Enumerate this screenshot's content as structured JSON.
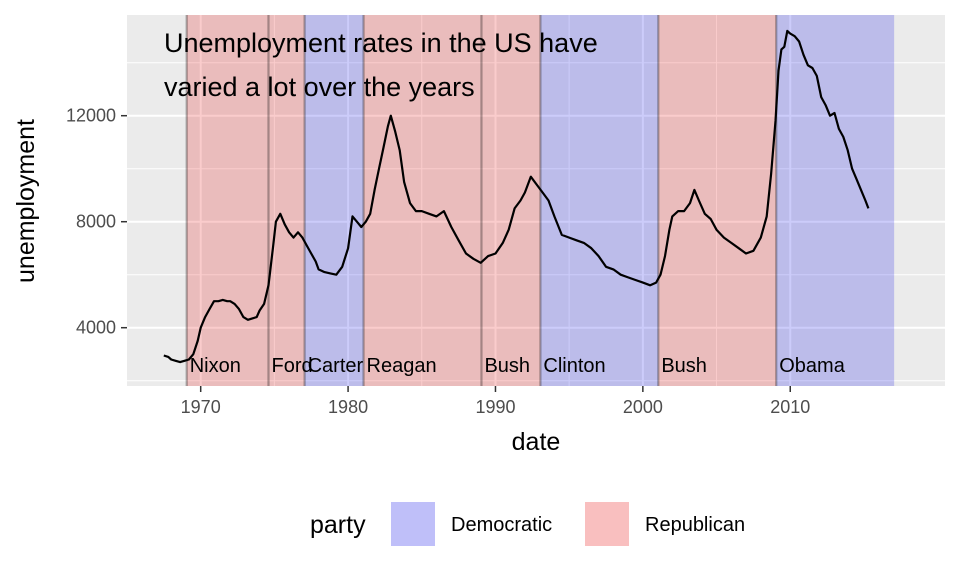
{
  "chart_data": {
    "type": "line",
    "xlabel": "date",
    "ylabel": "unemployment",
    "xlim": [
      1965.0,
      2020.5
    ],
    "ylim": [
      1800,
      15800
    ],
    "x_ticks": [
      1970,
      1980,
      1990,
      2000,
      2010
    ],
    "y_ticks": [
      4000,
      8000,
      12000
    ],
    "grid": true,
    "annotation": [
      "Unemployment rates in the US have",
      "varied a lot over the years"
    ],
    "colors": {
      "Democratic": "#0000e6",
      "Republican": "#e60000",
      "panel": "#ebebeb",
      "grid": "#ffffff",
      "line": "#000000"
    },
    "presidents": [
      {
        "name": "Nixon",
        "start": 1969.05,
        "end": 1974.6,
        "party": "Republican"
      },
      {
        "name": "Ford",
        "start": 1974.6,
        "end": 1977.05,
        "party": "Republican"
      },
      {
        "name": "Carter",
        "start": 1977.05,
        "end": 1981.05,
        "party": "Democratic"
      },
      {
        "name": "Reagan",
        "start": 1981.05,
        "end": 1989.05,
        "party": "Republican"
      },
      {
        "name": "Bush",
        "start": 1989.05,
        "end": 1993.05,
        "party": "Republican"
      },
      {
        "name": "Clinton",
        "start": 1993.05,
        "end": 2001.05,
        "party": "Democratic"
      },
      {
        "name": "Bush",
        "start": 2001.05,
        "end": 2009.05,
        "party": "Republican"
      },
      {
        "name": "Obama",
        "start": 2009.05,
        "end": 2017.05,
        "party": "Democratic"
      }
    ],
    "legend": {
      "title": "party",
      "position": "bottom",
      "items": [
        {
          "label": "Democratic",
          "color": "#0000e6"
        },
        {
          "label": "Republican",
          "color": "#e60000"
        }
      ]
    },
    "series": [
      {
        "x": [
          1967.5,
          1967.8,
          1968.0,
          1968.3,
          1968.6,
          1968.9,
          1969.2,
          1969.5,
          1969.8,
          1970.0,
          1970.3,
          1970.6,
          1970.9,
          1971.2,
          1971.5,
          1971.8,
          1972.0,
          1972.3,
          1972.6,
          1972.9,
          1973.2,
          1973.5,
          1973.8,
          1974.0,
          1974.3,
          1974.6,
          1974.9,
          1975.1,
          1975.4,
          1975.7,
          1976.0,
          1976.3,
          1976.6,
          1976.9,
          1977.2,
          1977.5,
          1977.8,
          1978.0,
          1978.4,
          1978.8,
          1979.2,
          1979.6,
          1980.0,
          1980.3,
          1980.6,
          1980.9,
          1981.2,
          1981.5,
          1981.8,
          1982.1,
          1982.4,
          1982.7,
          1982.9,
          1983.2,
          1983.5,
          1983.8,
          1984.2,
          1984.6,
          1985.0,
          1985.5,
          1986.0,
          1986.5,
          1987.0,
          1987.5,
          1988.0,
          1988.5,
          1989.0,
          1989.5,
          1990.0,
          1990.5,
          1990.9,
          1991.3,
          1991.7,
          1992.0,
          1992.4,
          1992.8,
          1993.2,
          1993.6,
          1994.0,
          1994.5,
          1995.0,
          1995.5,
          1996.0,
          1996.5,
          1997.0,
          1997.5,
          1998.0,
          1998.5,
          1999.0,
          1999.5,
          2000.0,
          2000.5,
          2000.9,
          2001.2,
          2001.5,
          2001.8,
          2002.0,
          2002.4,
          2002.8,
          2003.2,
          2003.5,
          2003.8,
          2004.2,
          2004.6,
          2005.0,
          2005.5,
          2006.0,
          2006.5,
          2007.0,
          2007.5,
          2008.0,
          2008.4,
          2008.7,
          2009.0,
          2009.2,
          2009.4,
          2009.6,
          2009.8,
          2010.0,
          2010.3,
          2010.6,
          2010.9,
          2011.2,
          2011.5,
          2011.8,
          2012.1,
          2012.4,
          2012.7,
          2013.0,
          2013.3,
          2013.6,
          2013.9,
          2014.2,
          2014.5,
          2014.8,
          2015.1,
          2015.3
        ],
        "y": [
          2950,
          2900,
          2800,
          2750,
          2700,
          2750,
          2800,
          3000,
          3500,
          4000,
          4400,
          4700,
          5000,
          5000,
          5050,
          5000,
          5000,
          4900,
          4700,
          4400,
          4300,
          4350,
          4400,
          4650,
          4900,
          5600,
          7000,
          8000,
          8300,
          7900,
          7600,
          7400,
          7600,
          7400,
          7100,
          6800,
          6500,
          6200,
          6100,
          6050,
          6000,
          6300,
          7000,
          8200,
          8000,
          7800,
          8000,
          8300,
          9200,
          10000,
          10800,
          11600,
          12000,
          11400,
          10700,
          9500,
          8700,
          8400,
          8400,
          8300,
          8200,
          8400,
          7800,
          7300,
          6800,
          6600,
          6450,
          6700,
          6800,
          7200,
          7700,
          8500,
          8800,
          9100,
          9700,
          9400,
          9100,
          8800,
          8200,
          7500,
          7400,
          7300,
          7200,
          7000,
          6700,
          6300,
          6200,
          6000,
          5900,
          5800,
          5700,
          5600,
          5700,
          6000,
          6700,
          7700,
          8200,
          8400,
          8400,
          8700,
          9200,
          8800,
          8300,
          8100,
          7700,
          7400,
          7200,
          7000,
          6800,
          6900,
          7400,
          8200,
          9800,
          11800,
          13700,
          14500,
          14600,
          15200,
          15100,
          15000,
          14800,
          14300,
          13900,
          13800,
          13500,
          12700,
          12400,
          12000,
          12100,
          11500,
          11200,
          10700,
          10000,
          9600,
          9200,
          8800,
          8500
        ]
      }
    ]
  }
}
